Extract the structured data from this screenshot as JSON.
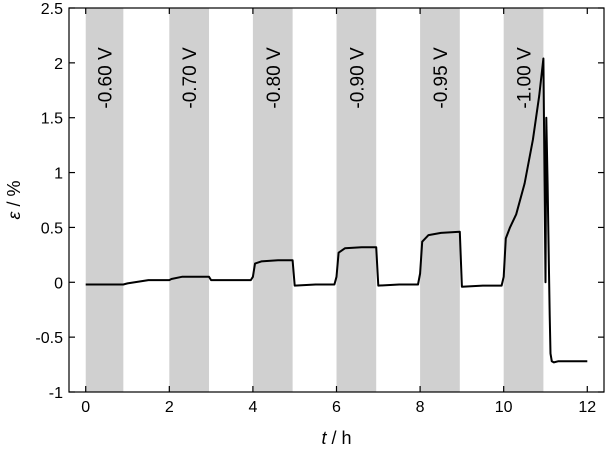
{
  "chart_data": {
    "type": "line",
    "xlabel": {
      "symbol": "t",
      "unit": " / h"
    },
    "ylabel": {
      "symbol": "ε",
      "unit": " / %"
    },
    "xlim": [
      -0.4,
      12.4
    ],
    "ylim": [
      -1,
      2.5
    ],
    "xticks": [
      0,
      2,
      4,
      6,
      8,
      10,
      12
    ],
    "yticks": [
      -1,
      -0.5,
      0,
      0.5,
      1,
      1.5,
      2,
      2.5
    ],
    "ytick_labels": [
      "-1",
      "-0.5",
      "0",
      "0.5",
      "1",
      "1.5",
      "2",
      "2.5"
    ],
    "grid": false,
    "colors": {
      "band": "#d0d0d0",
      "line": "#000000"
    },
    "bands": [
      {
        "start": 0.0,
        "end": 0.9,
        "label": "-0.60 V"
      },
      {
        "start": 2.0,
        "end": 2.95,
        "label": "-0.70 V"
      },
      {
        "start": 4.0,
        "end": 4.95,
        "label": "-0.80 V"
      },
      {
        "start": 6.0,
        "end": 6.95,
        "label": "-0.90 V"
      },
      {
        "start": 8.0,
        "end": 8.95,
        "label": "-0.95 V"
      },
      {
        "start": 10.0,
        "end": 10.95,
        "label": "-1.00 V"
      }
    ],
    "series": [
      {
        "x": [
          0.0,
          0.5,
          0.9,
          1.0,
          1.5,
          2.0,
          2.05,
          2.3,
          2.6,
          2.95,
          3.0,
          3.5,
          3.95,
          4.0,
          4.05,
          4.2,
          4.6,
          4.95,
          5.0,
          5.5,
          5.95,
          6.0,
          6.05,
          6.2,
          6.6,
          6.95,
          7.0,
          7.5,
          7.95,
          8.0,
          8.05,
          8.2,
          8.5,
          8.95,
          9.0,
          9.5,
          9.95,
          10.0,
          10.05,
          10.15,
          10.3,
          10.5,
          10.7,
          10.85,
          10.95,
          11.0,
          11.02,
          11.05,
          11.08,
          11.1,
          11.12,
          11.15,
          11.2,
          11.3,
          11.5,
          12.0
        ],
        "y": [
          -0.02,
          -0.02,
          -0.02,
          -0.01,
          0.02,
          0.02,
          0.03,
          0.05,
          0.05,
          0.05,
          0.02,
          0.02,
          0.02,
          0.05,
          0.17,
          0.19,
          0.2,
          0.2,
          -0.03,
          -0.02,
          -0.02,
          0.05,
          0.27,
          0.31,
          0.32,
          0.32,
          -0.03,
          -0.02,
          -0.02,
          0.08,
          0.37,
          0.43,
          0.45,
          0.46,
          -0.04,
          -0.03,
          -0.03,
          0.05,
          0.4,
          0.5,
          0.62,
          0.9,
          1.3,
          1.7,
          2.04,
          0.0,
          1.5,
          0.9,
          0.2,
          -0.3,
          -0.65,
          -0.72,
          -0.73,
          -0.72,
          -0.72,
          -0.72
        ]
      }
    ]
  }
}
